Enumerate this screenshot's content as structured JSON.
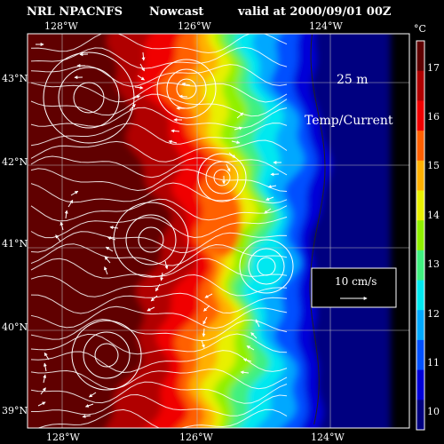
{
  "header": {
    "product": "NRL NPACNFS",
    "kind": "Nowcast",
    "valid": "valid at 2000/09/01 00Z"
  },
  "axes": {
    "lon_top": [
      "128°W",
      "126°W",
      "124°W"
    ],
    "lon_bottom": [
      "128°W",
      "126°W",
      "124°W"
    ],
    "lat": [
      "43°N",
      "42°N",
      "41°N",
      "40°N",
      "39°N"
    ]
  },
  "overlay": {
    "depth": "25 m",
    "field": "Temp/Current",
    "vector_scale": "10 cm/s"
  },
  "colorbar": {
    "unit": "°C",
    "ticks": [
      "17",
      "16",
      "15",
      "14",
      "13",
      "12",
      "11",
      "10"
    ],
    "colors": [
      "#000080",
      "#0000d8",
      "#0050ff",
      "#00a8ff",
      "#00e8f0",
      "#40f080",
      "#90f000",
      "#e8f000",
      "#ffb000",
      "#ff6000",
      "#f00000",
      "#b00000",
      "#600000"
    ]
  },
  "land_color": "#000000",
  "current_color": "#ffffff"
}
